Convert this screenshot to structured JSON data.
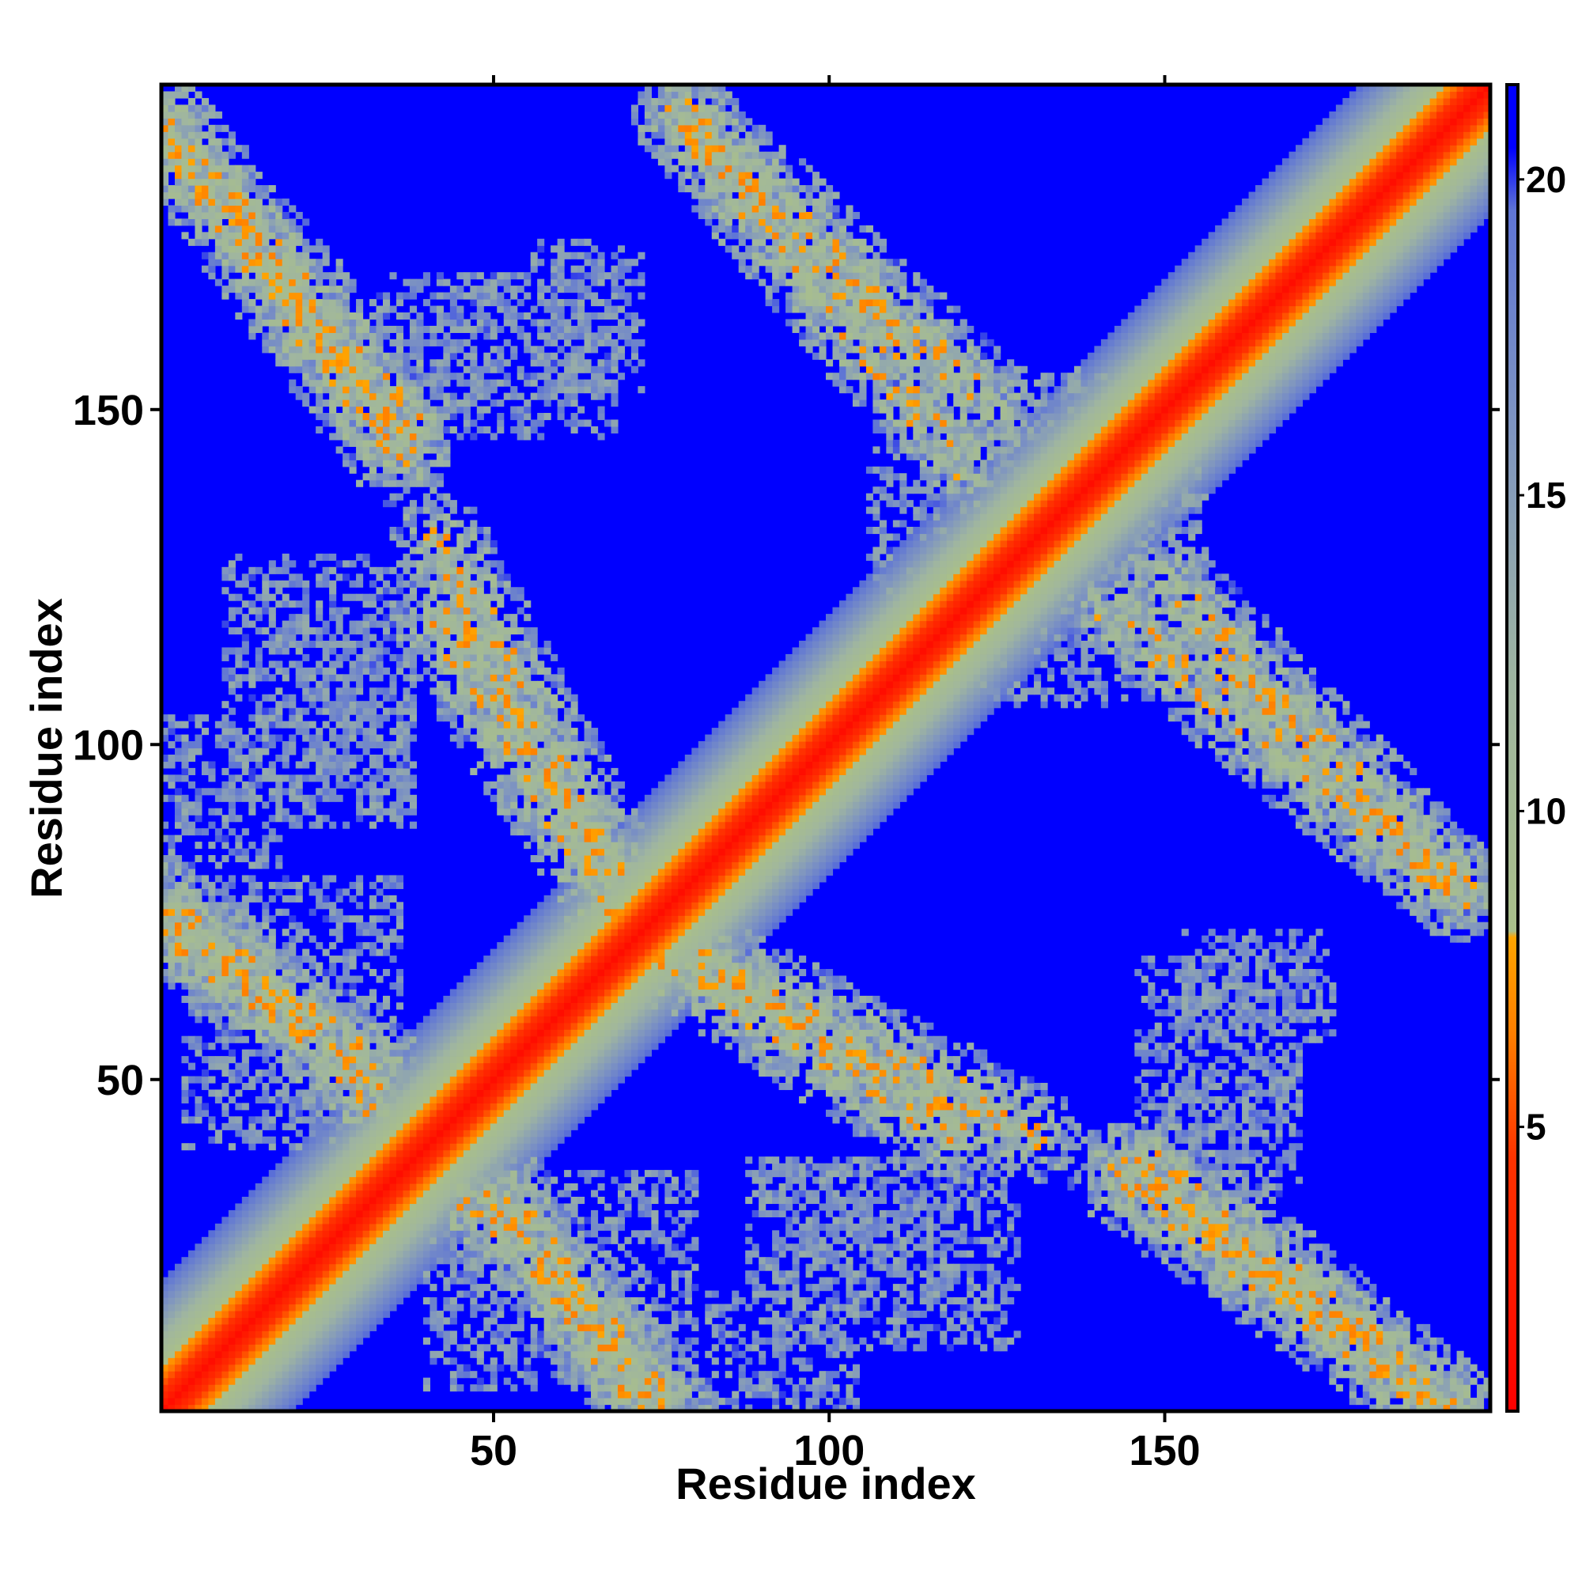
{
  "chart_data": {
    "type": "heatmap",
    "title": "",
    "xlabel": "Residue index",
    "ylabel": "Residue index",
    "xlim": [
      1,
      198
    ],
    "ylim": [
      1,
      198
    ],
    "x_ticks": [
      50,
      100,
      150
    ],
    "y_ticks": [
      50,
      100,
      150
    ],
    "x_tick_labels": [
      "50",
      "100",
      "150"
    ],
    "y_tick_labels": [
      "50",
      "100",
      "150"
    ],
    "colorbar": {
      "range": [
        0.5,
        21.5
      ],
      "ticks": [
        5,
        10,
        15,
        20
      ],
      "tick_labels": [
        "5",
        "10",
        "15",
        "20"
      ],
      "stops": [
        {
          "value": 0.5,
          "color": "#ff0000"
        },
        {
          "value": 4.5,
          "color": "#ff3300"
        },
        {
          "value": 6.5,
          "color": "#ff7f00"
        },
        {
          "value": 8.0,
          "color": "#ffa500"
        },
        {
          "value": 8.1,
          "color": "#a9bf8a"
        },
        {
          "value": 12.0,
          "color": "#9fb5a0"
        },
        {
          "value": 16.0,
          "color": "#7f95c0"
        },
        {
          "value": 19.5,
          "color": "#5f75d5"
        },
        {
          "value": 20.5,
          "color": "#0000ff"
        },
        {
          "value": 21.5,
          "color": "#0000ff"
        }
      ],
      "cap_color": "#0000ff"
    },
    "grid": false,
    "legend": "none",
    "diagonal_band": {
      "from": 1,
      "to": 198
    },
    "off_diagonal_bands": [
      {
        "x": [
          1,
          37
        ],
        "y": [
          192,
          148
        ]
      },
      {
        "x": [
          42,
          67
        ],
        "y": [
          130,
          82
        ]
      },
      {
        "x": [
          1,
          32
        ],
        "y": [
          74,
          47
        ]
      },
      {
        "x": [
          52,
          75
        ],
        "y": [
          32,
          1
        ]
      },
      {
        "x": [
          70,
          118
        ],
        "y": [
          72,
          42
        ]
      },
      {
        "x": [
          78,
          120
        ],
        "y": [
          194,
          142
        ]
      },
      {
        "x": [
          150,
          192
        ],
        "y": [
          124,
          80
        ]
      },
      {
        "x": [
          143,
          192
        ],
        "y": [
          36,
          1
        ]
      }
    ],
    "diffuse_regions": [
      {
        "x": [
          1,
          18
        ],
        "y": [
          82,
          104
        ]
      },
      {
        "x": [
          18,
          38
        ],
        "y": [
          88,
          118
        ]
      },
      {
        "x": [
          42,
          68
        ],
        "y": [
          146,
          170
        ]
      },
      {
        "x": [
          40,
          80
        ],
        "y": [
          4,
          36
        ]
      },
      {
        "x": [
          92,
          128
        ],
        "y": [
          10,
          38
        ]
      },
      {
        "x": [
          118,
          148
        ],
        "y": [
          106,
          156
        ]
      },
      {
        "x": [
          152,
          175
        ],
        "y": [
          56,
          72
        ]
      },
      {
        "x": [
          150,
          170
        ],
        "y": [
          32,
          52
        ]
      }
    ]
  }
}
